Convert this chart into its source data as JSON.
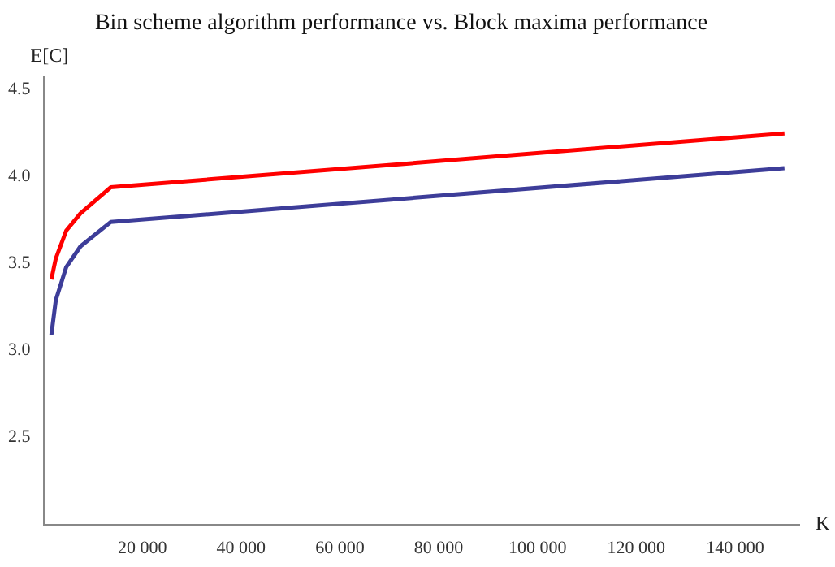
{
  "chart_data": {
    "type": "line",
    "title": "Bin scheme algorithm performance vs. Block maxima performance",
    "xlabel": "K",
    "ylabel": "E[C]",
    "x": [
      1600,
      2500,
      4600,
      7500,
      13600,
      150000
    ],
    "series": [
      {
        "color": "#ff0000",
        "values": [
          3.41,
          3.53,
          3.69,
          3.79,
          3.94,
          4.25
        ]
      },
      {
        "color": "#3d3d99",
        "values": [
          3.09,
          3.29,
          3.48,
          3.6,
          3.74,
          4.05
        ]
      }
    ],
    "xlim": [
      0,
      153000
    ],
    "ylim": [
      2,
      4.58
    ],
    "xticks": [
      {
        "value": 20000,
        "label": "20 000"
      },
      {
        "value": 40000,
        "label": "40 000"
      },
      {
        "value": 60000,
        "label": "60 000"
      },
      {
        "value": 80000,
        "label": "80 000"
      },
      {
        "value": 100000,
        "label": "100 000"
      },
      {
        "value": 120000,
        "label": "120 000"
      },
      {
        "value": 140000,
        "label": "140 000"
      }
    ],
    "yticks": [
      {
        "value": 2.5,
        "label": "2.5"
      },
      {
        "value": 3,
        "label": "3.0"
      },
      {
        "value": 3.5,
        "label": "3.5"
      },
      {
        "value": 4,
        "label": "4.0"
      },
      {
        "value": 4.5,
        "label": "4.5"
      }
    ],
    "grid": false,
    "legend": false,
    "marker": "none",
    "line_style": "solid"
  }
}
